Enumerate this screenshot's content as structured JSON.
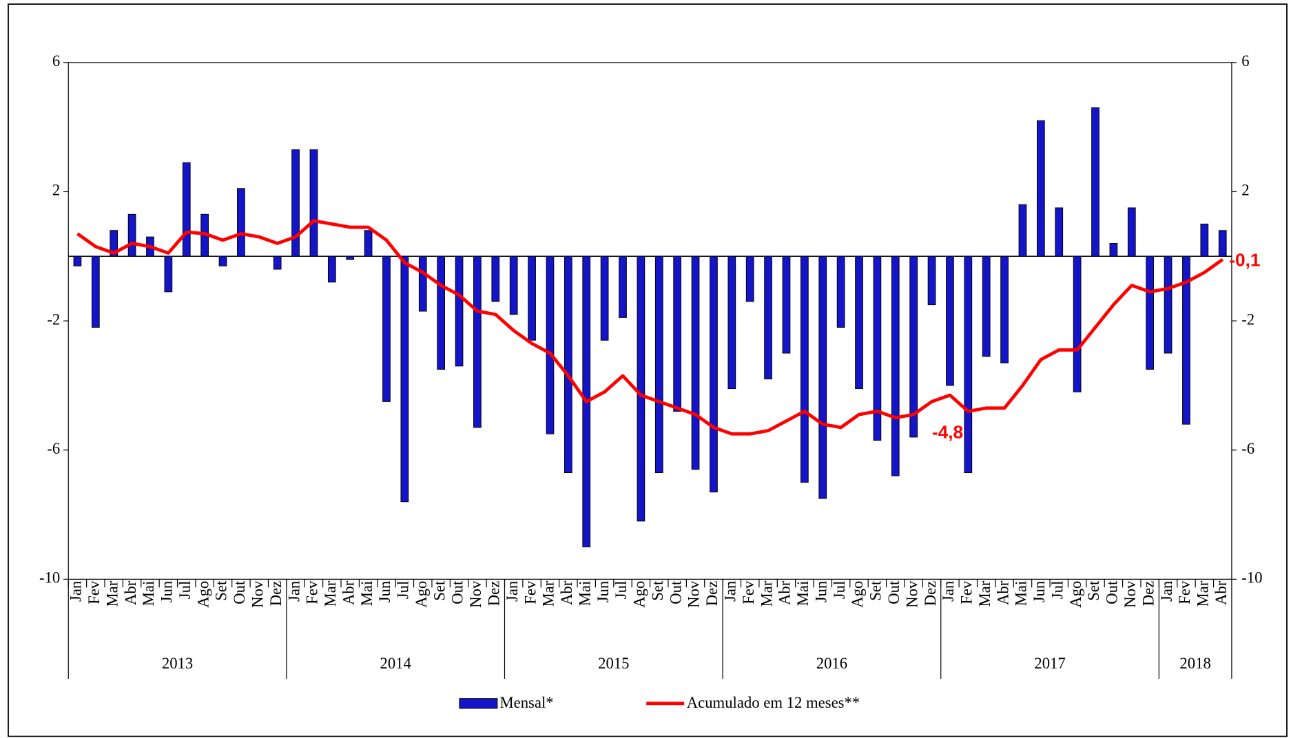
{
  "chart_data": {
    "type": "bar-line",
    "categories": [
      "Jan",
      "Fev",
      "Mar",
      "Abr",
      "Mai",
      "Jun",
      "Jul",
      "Ago",
      "Set",
      "Out",
      "Nov",
      "Dez",
      "Jan",
      "Fev",
      "Mar",
      "Abr",
      "Mai",
      "Jun",
      "Jul",
      "Ago",
      "Set",
      "Out",
      "Nov",
      "Dez",
      "Jan",
      "Fev",
      "Mar",
      "Abr",
      "Mai",
      "Jun",
      "Jul",
      "Ago",
      "Set",
      "Out",
      "Nov",
      "Dez",
      "Jan",
      "Fev",
      "Mar",
      "Abr",
      "Mai",
      "Jun",
      "Jul",
      "Ago",
      "Set",
      "Out",
      "Nov",
      "Dez",
      "Jan",
      "Fev",
      "Mar",
      "Abr",
      "Mai",
      "Jun",
      "Jul",
      "Ago",
      "Set",
      "Out",
      "Nov",
      "Dez",
      "Jan",
      "Fev",
      "Mar",
      "Abr"
    ],
    "years": [
      "2013",
      "2014",
      "2015",
      "2016",
      "2017",
      "2018"
    ],
    "series": [
      {
        "name": "Mensal*",
        "type": "bar",
        "color": "#1414c8",
        "values": [
          -0.3,
          -2.2,
          0.8,
          1.3,
          0.6,
          -1.1,
          2.9,
          1.3,
          -0.3,
          2.1,
          0,
          -0.4,
          3.3,
          3.3,
          -0.8,
          -0.1,
          0.8,
          -4.5,
          -7.6,
          -1.7,
          -3.5,
          -3.4,
          -5.3,
          -1.4,
          -1.8,
          -2.6,
          -5.5,
          -6.7,
          -9.0,
          -2.6,
          -1.9,
          -8.2,
          -6.7,
          -4.8,
          -6.6,
          -7.3,
          -4.1,
          -1.4,
          -3.8,
          -3.0,
          -7.0,
          -7.5,
          -2.2,
          -4.1,
          -5.7,
          -6.8,
          -5.6,
          -1.5,
          -4.0,
          -6.7,
          -3.1,
          -3.3,
          1.6,
          4.2,
          1.5,
          -4.2,
          4.6,
          0.4,
          1.5,
          -3.5,
          -3.0,
          -5.2,
          1.0,
          0.8
        ]
      },
      {
        "name": "Acumulado em 12 meses**",
        "type": "line",
        "color": "#ff0000",
        "values": [
          0.7,
          0.3,
          0.1,
          0.4,
          0.3,
          0.1,
          0.75,
          0.7,
          0.5,
          0.7,
          0.6,
          0.4,
          0.6,
          1.1,
          1.0,
          0.9,
          0.9,
          0.5,
          -0.2,
          -0.5,
          -0.9,
          -1.2,
          -1.7,
          -1.8,
          -2.3,
          -2.7,
          -3.0,
          -3.7,
          -4.5,
          -4.2,
          -3.7,
          -4.3,
          -4.5,
          -4.7,
          -4.9,
          -5.3,
          -5.5,
          -5.5,
          -5.4,
          -5.1,
          -4.8,
          -5.2,
          -5.3,
          -4.9,
          -4.8,
          -5.0,
          -4.9,
          -4.5,
          -4.3,
          -4.8,
          -4.7,
          -4.7,
          -4.0,
          -3.2,
          -2.9,
          -2.9,
          -2.2,
          -1.5,
          -0.9,
          -1.1,
          -1.0,
          -0.8,
          -0.5,
          -0.1
        ],
        "value_labels": [
          null,
          null,
          null,
          null,
          null,
          null,
          null,
          null,
          null,
          null,
          null,
          null,
          null,
          null,
          null,
          null,
          null,
          null,
          null,
          null,
          null,
          null,
          null,
          null,
          null,
          null,
          null,
          null,
          null,
          null,
          null,
          null,
          null,
          null,
          null,
          null,
          null,
          null,
          null,
          null,
          null,
          null,
          null,
          null,
          null,
          null,
          null,
          null,
          null,
          "-4,8",
          null,
          null,
          null,
          null,
          null,
          null,
          null,
          null,
          null,
          null,
          null,
          null,
          null,
          "-0,1"
        ]
      }
    ],
    "ylim": [
      -10,
      6
    ],
    "yticks": [
      -10,
      -6,
      -2,
      2,
      6
    ],
    "y2lim": [
      -10,
      6
    ],
    "y2ticks": [
      -10,
      -6,
      -2,
      2,
      6
    ]
  }
}
